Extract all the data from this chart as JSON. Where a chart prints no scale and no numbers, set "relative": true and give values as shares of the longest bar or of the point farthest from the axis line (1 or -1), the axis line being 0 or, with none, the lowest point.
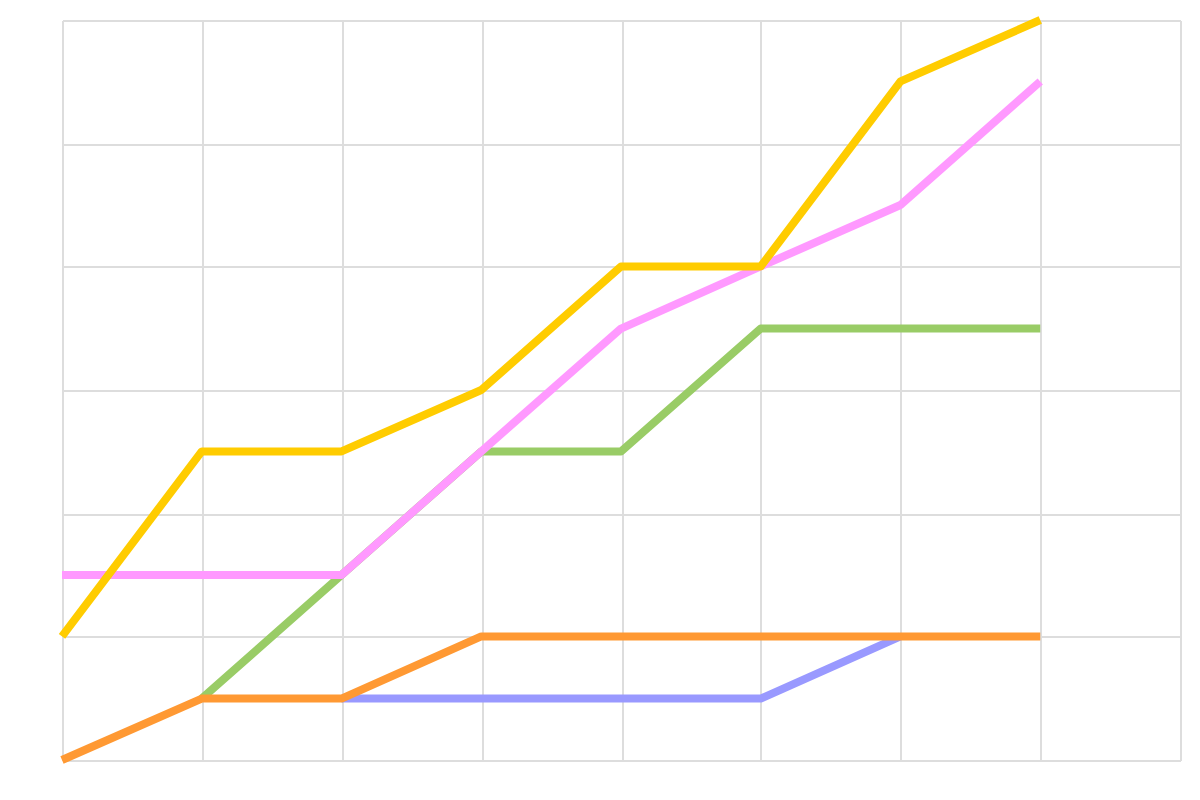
{
  "chart_data": {
    "type": "line",
    "relative": true,
    "grid": true,
    "tick_labels": false,
    "marker": "none",
    "line_style": "solid",
    "categories": [
      null,
      null,
      null,
      null,
      null,
      null,
      null,
      null,
      null
    ],
    "series": [
      {
        "color": "#9999ff",
        "values": [
          null,
          null,
          0.083,
          0.083,
          0.083,
          0.083,
          0.167,
          null,
          null
        ]
      },
      {
        "color": "#99cc66",
        "values": [
          null,
          0.083,
          0.25,
          0.417,
          0.417,
          0.583,
          0.583,
          0.583,
          null
        ]
      },
      {
        "color": "#ff99ff",
        "values": [
          0.25,
          0.25,
          0.25,
          0.417,
          0.583,
          0.667,
          0.75,
          0.917,
          null
        ]
      },
      {
        "color": "#ffcc00",
        "values": [
          0.167,
          0.417,
          0.417,
          0.5,
          0.667,
          0.667,
          0.917,
          1,
          null
        ]
      },
      {
        "color": "#ff9933",
        "values": [
          0,
          0.083,
          0.083,
          0.167,
          0.167,
          0.167,
          0.167,
          0.167,
          null
        ]
      }
    ]
  }
}
